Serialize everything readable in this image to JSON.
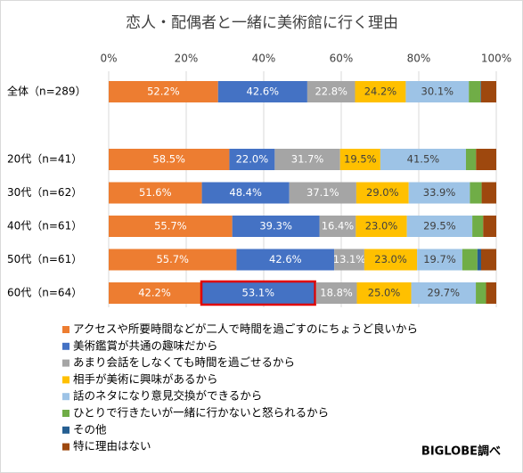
{
  "chart_data": {
    "type": "bar",
    "orientation": "horizontal",
    "stacked": "percent",
    "title": "恋人・配偶者と一緒に美術館に行く理由",
    "source": "BIGLOBE調べ",
    "categories": [
      "全体（n=289）",
      "20代（n=41）",
      "30代（n=62）",
      "40代（n=61）",
      "50代（n=61）",
      "60代（n=64）"
    ],
    "xlim": [
      0,
      100
    ],
    "xticks": [
      {
        "value": 0,
        "label": "0%"
      },
      {
        "value": 20,
        "label": "20%"
      },
      {
        "value": 40,
        "label": "40%"
      },
      {
        "value": 60,
        "label": "60%"
      },
      {
        "value": 80,
        "label": "80%"
      },
      {
        "value": 100,
        "label": "100%"
      }
    ],
    "grid": true,
    "legend": "bottom",
    "series": [
      {
        "name": "アクセスや所要時間などが二人で時間を過ごすのにちょうど良いから",
        "color": "#ed7d31",
        "label_color": "#ffffff",
        "values": [
          52.2,
          58.5,
          51.6,
          55.7,
          55.7,
          42.2
        ],
        "value_labels": [
          "52.2%",
          "58.5%",
          "51.6%",
          "55.7%",
          "55.7%",
          "42.2%"
        ]
      },
      {
        "name": "美術鑑賞が共通の趣味だから",
        "color": "#4472c4",
        "label_color": "#ffffff",
        "values": [
          42.6,
          22.0,
          48.4,
          39.3,
          42.6,
          53.1
        ],
        "value_labels": [
          "42.6%",
          "22.0%",
          "48.4%",
          "39.3%",
          "42.6%",
          "53.1%"
        ]
      },
      {
        "name": "あまり会話をしなくても時間を過ごせるから",
        "color": "#a5a5a5",
        "label_color": "#ffffff",
        "values": [
          22.8,
          31.7,
          37.1,
          16.4,
          13.1,
          18.8
        ],
        "value_labels": [
          "22.8%",
          "31.7%",
          "37.1%",
          "16.4%",
          "13.1%",
          "18.8%"
        ]
      },
      {
        "name": "相手が美術に興味があるから",
        "color": "#ffc000",
        "label_color": "#404040",
        "values": [
          24.2,
          19.5,
          29.0,
          23.0,
          23.0,
          25.0
        ],
        "value_labels": [
          "24.2%",
          "19.5%",
          "29.0%",
          "23.0%",
          "23.0%",
          "25.0%"
        ]
      },
      {
        "name": "話のネタになり意見交換ができるから",
        "color": "#9dc3e6",
        "label_color": "#404040",
        "values": [
          30.1,
          41.5,
          33.9,
          29.5,
          19.7,
          29.7
        ],
        "value_labels": [
          "30.1%",
          "41.5%",
          "33.9%",
          "29.5%",
          "19.7%",
          "29.7%"
        ]
      },
      {
        "name": "ひとりで行きたいが一緒に行かないと怒られるから",
        "color": "#70ad47",
        "values": [
          5.5,
          4.9,
          6.5,
          4.9,
          6.6,
          4.7
        ]
      },
      {
        "name": "その他",
        "color": "#255e91",
        "values": [
          0.3,
          0,
          0,
          0,
          1.6,
          0
        ]
      },
      {
        "name": "特に理由はない",
        "color": "#9e480e",
        "values": [
          7.3,
          9.8,
          8.1,
          5.9,
          6.6,
          4.7
        ]
      }
    ]
  }
}
